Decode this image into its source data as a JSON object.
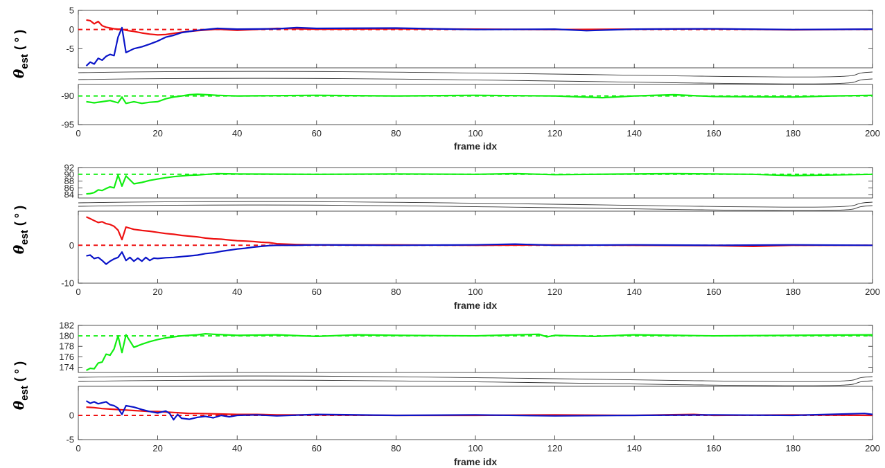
{
  "figure": {
    "colors": {
      "red": "#ee1111",
      "blue": "#0a14c8",
      "green": "#11ee11",
      "axis": "#262626"
    }
  },
  "chart_data": [
    {
      "type": "line",
      "title": "",
      "xlabel": "frame idx",
      "ylabel": {
        "symbol": "θ",
        "subscript": "est",
        "unit": "( ° )"
      },
      "xlim": [
        0,
        200
      ],
      "x_ticks": [
        "0",
        "20",
        "40",
        "60",
        "80",
        "100",
        "120",
        "140",
        "160",
        "180",
        "200"
      ],
      "broken_axis": true,
      "upper": {
        "ylim": [
          -10,
          5
        ],
        "y_ticks": [
          "5",
          "0",
          "-5"
        ]
      },
      "lower": {
        "ylim": [
          -95,
          -88
        ],
        "y_ticks": [
          "-90",
          "-95"
        ]
      },
      "series": [
        {
          "color": "red",
          "panel": "upper",
          "reference": 0,
          "x": [
            2,
            3,
            4,
            5,
            6,
            7,
            8,
            9,
            10,
            11,
            12,
            14,
            16,
            18,
            20,
            22,
            24,
            26,
            28,
            30,
            35,
            40,
            50,
            60,
            80,
            100,
            120,
            140,
            160,
            180,
            200
          ],
          "y": [
            2.5,
            2.3,
            1.5,
            2.1,
            1.0,
            0.6,
            0.4,
            0.2,
            0.1,
            0.1,
            -0.2,
            -0.5,
            -0.9,
            -1.2,
            -1.4,
            -1.3,
            -1.0,
            -0.7,
            -0.5,
            -0.3,
            0.1,
            -0.2,
            0.3,
            0.1,
            0.2,
            0.1,
            0.0,
            0.1,
            0.2,
            -0.1,
            0.1
          ]
        },
        {
          "color": "blue",
          "panel": "upper",
          "reference": 0,
          "x": [
            2,
            3,
            4,
            5,
            6,
            7,
            8,
            9,
            10,
            11,
            12,
            14,
            16,
            18,
            20,
            22,
            24,
            26,
            28,
            30,
            35,
            40,
            50,
            55,
            60,
            80,
            100,
            120,
            128,
            140,
            160,
            180,
            200
          ],
          "y": [
            -9.5,
            -8.5,
            -9.0,
            -7.5,
            -8.0,
            -7.0,
            -6.5,
            -6.8,
            -2.0,
            0.5,
            -6.0,
            -5.0,
            -4.5,
            -3.8,
            -3.0,
            -2.0,
            -1.5,
            -0.8,
            -0.5,
            -0.2,
            0.3,
            0.1,
            0.2,
            0.5,
            0.3,
            0.4,
            0.0,
            0.1,
            -0.3,
            0.1,
            0.2,
            0.0,
            0.1
          ]
        },
        {
          "color": "green",
          "panel": "lower",
          "reference": -90,
          "x": [
            2,
            4,
            6,
            8,
            10,
            11,
            12,
            14,
            16,
            18,
            20,
            22,
            24,
            26,
            28,
            30,
            35,
            40,
            60,
            80,
            100,
            120,
            132,
            140,
            150,
            160,
            180,
            190,
            200
          ],
          "y": [
            -91.0,
            -91.2,
            -91.0,
            -90.8,
            -91.2,
            -90.2,
            -91.3,
            -91.0,
            -91.3,
            -91.1,
            -91.0,
            -90.5,
            -90.2,
            -90.0,
            -89.8,
            -89.7,
            -89.9,
            -90.0,
            -89.9,
            -90.0,
            -89.9,
            -90.0,
            -90.3,
            -90.0,
            -89.8,
            -90.1,
            -90.2,
            -90.0,
            -89.9
          ]
        }
      ]
    },
    {
      "type": "line",
      "title": "",
      "xlabel": "frame idx",
      "ylabel": {
        "symbol": "θ",
        "subscript": "est",
        "unit": "( ° )"
      },
      "xlim": [
        0,
        200
      ],
      "x_ticks": [
        "0",
        "20",
        "40",
        "60",
        "80",
        "100",
        "120",
        "140",
        "160",
        "180",
        "200"
      ],
      "broken_axis": true,
      "upper": {
        "ylim": [
          83,
          92
        ],
        "y_ticks": [
          "92",
          "90",
          "88",
          "86",
          "84"
        ]
      },
      "lower": {
        "ylim": [
          -10,
          9
        ],
        "y_ticks": [
          "0",
          "-10"
        ]
      },
      "series": [
        {
          "color": "green",
          "panel": "upper",
          "reference": 90,
          "x": [
            2,
            3,
            4,
            5,
            6,
            7,
            8,
            9,
            10,
            11,
            12,
            14,
            16,
            18,
            20,
            22,
            24,
            26,
            28,
            30,
            35,
            40,
            60,
            80,
            100,
            110,
            120,
            150,
            170,
            180,
            185,
            200
          ],
          "y": [
            84.2,
            84.3,
            84.6,
            85.4,
            85.2,
            85.8,
            86.3,
            86.0,
            89.8,
            86.5,
            89.5,
            87.2,
            87.6,
            88.2,
            88.6,
            89.0,
            89.3,
            89.5,
            89.7,
            89.8,
            90.2,
            90.1,
            90.0,
            90.1,
            90.0,
            90.2,
            89.9,
            90.2,
            90.0,
            89.6,
            89.7,
            90.0
          ]
        },
        {
          "color": "red",
          "panel": "lower",
          "reference": 0,
          "x": [
            2,
            3,
            4,
            5,
            6,
            7,
            8,
            9,
            10,
            11,
            12,
            14,
            16,
            18,
            20,
            22,
            24,
            26,
            28,
            30,
            32,
            34,
            36,
            38,
            40,
            42,
            44,
            46,
            48,
            50,
            55,
            60,
            80,
            100,
            120,
            140,
            160,
            170,
            180,
            200
          ],
          "y": [
            7.5,
            7.0,
            6.5,
            6.0,
            6.2,
            5.7,
            5.5,
            5.0,
            4.0,
            1.5,
            4.8,
            4.2,
            3.9,
            3.7,
            3.4,
            3.1,
            2.9,
            2.6,
            2.4,
            2.2,
            1.9,
            1.7,
            1.6,
            1.4,
            1.2,
            1.1,
            1.0,
            0.8,
            0.7,
            0.4,
            0.2,
            0.1,
            0.1,
            0.0,
            0.1,
            0.0,
            -0.1,
            -0.3,
            0.0,
            0.0
          ]
        },
        {
          "color": "blue",
          "panel": "lower",
          "reference": 0,
          "x": [
            2,
            3,
            4,
            5,
            6,
            7,
            8,
            9,
            10,
            11,
            12,
            13,
            14,
            15,
            16,
            17,
            18,
            19,
            20,
            22,
            24,
            26,
            28,
            30,
            32,
            34,
            36,
            38,
            40,
            42,
            44,
            46,
            48,
            50,
            55,
            60,
            80,
            100,
            110,
            120,
            140,
            160,
            180,
            200
          ],
          "y": [
            -2.8,
            -2.6,
            -3.5,
            -3.2,
            -4.0,
            -5.0,
            -4.2,
            -3.6,
            -3.2,
            -1.8,
            -4.0,
            -3.2,
            -4.2,
            -3.4,
            -4.2,
            -3.2,
            -4.0,
            -3.4,
            -3.5,
            -3.3,
            -3.2,
            -3.0,
            -2.8,
            -2.6,
            -2.2,
            -2.0,
            -1.6,
            -1.3,
            -1.0,
            -0.8,
            -0.5,
            -0.3,
            -0.1,
            0.0,
            0.0,
            0.1,
            0.0,
            0.1,
            0.3,
            0.0,
            0.1,
            0.0,
            0.1,
            0.0
          ]
        }
      ]
    },
    {
      "type": "line",
      "title": "",
      "xlabel": "frame idx",
      "ylabel": {
        "symbol": "θ",
        "subscript": "est",
        "unit": "( ° )"
      },
      "xlim": [
        0,
        200
      ],
      "x_ticks": [
        "0",
        "20",
        "40",
        "60",
        "80",
        "100",
        "120",
        "140",
        "160",
        "180",
        "200"
      ],
      "broken_axis": true,
      "upper": {
        "ylim": [
          173,
          182
        ],
        "y_ticks": [
          "182",
          "180",
          "178",
          "176",
          "174"
        ]
      },
      "lower": {
        "ylim": [
          -5,
          6
        ],
        "y_ticks": [
          "0",
          "-5"
        ]
      },
      "series": [
        {
          "color": "green",
          "panel": "upper",
          "reference": 180,
          "x": [
            2,
            3,
            4,
            5,
            6,
            7,
            8,
            9,
            10,
            11,
            12,
            14,
            16,
            18,
            20,
            22,
            24,
            26,
            28,
            30,
            32,
            34,
            40,
            50,
            60,
            70,
            80,
            100,
            116,
            118,
            120,
            130,
            140,
            150,
            160,
            180,
            200
          ],
          "y": [
            173.4,
            173.8,
            173.7,
            174.8,
            175.0,
            176.5,
            176.3,
            177.5,
            180.0,
            176.8,
            180.2,
            177.8,
            178.4,
            178.9,
            179.3,
            179.6,
            179.8,
            180.0,
            180.1,
            180.2,
            180.4,
            180.3,
            180.1,
            180.2,
            179.9,
            180.2,
            180.1,
            180.0,
            180.3,
            179.8,
            180.1,
            179.9,
            180.2,
            180.1,
            180.0,
            180.1,
            180.2
          ]
        },
        {
          "color": "red",
          "panel": "lower",
          "reference": 0,
          "x": [
            2,
            4,
            6,
            8,
            10,
            12,
            14,
            16,
            18,
            20,
            22,
            24,
            26,
            28,
            30,
            35,
            40,
            45,
            50,
            60,
            80,
            100,
            120,
            140,
            155,
            160,
            180,
            200
          ],
          "y": [
            1.7,
            1.6,
            1.4,
            1.3,
            1.2,
            1.1,
            1.0,
            0.9,
            0.8,
            0.8,
            0.7,
            0.6,
            0.5,
            0.4,
            0.4,
            0.3,
            0.2,
            0.2,
            0.1,
            0.1,
            0.0,
            0.0,
            0.1,
            0.0,
            0.2,
            0.0,
            0.1,
            0.0
          ]
        },
        {
          "color": "blue",
          "panel": "lower",
          "reference": 0,
          "x": [
            2,
            3,
            4,
            5,
            6,
            7,
            8,
            9,
            10,
            11,
            12,
            14,
            16,
            18,
            20,
            22,
            23,
            24,
            25,
            26,
            28,
            30,
            32,
            34,
            36,
            38,
            40,
            45,
            50,
            60,
            80,
            100,
            120,
            140,
            160,
            180,
            198,
            200
          ],
          "y": [
            3.0,
            2.5,
            2.8,
            2.4,
            2.6,
            2.8,
            2.2,
            2.0,
            1.5,
            0.2,
            2.0,
            1.7,
            1.2,
            0.8,
            0.5,
            0.9,
            0.4,
            -0.9,
            0.2,
            -0.6,
            -0.8,
            -0.4,
            -0.2,
            -0.5,
            0.0,
            -0.3,
            0.0,
            0.1,
            -0.1,
            0.2,
            0.0,
            0.1,
            -0.1,
            0.0,
            0.1,
            0.0,
            0.4,
            0.2
          ]
        }
      ]
    }
  ]
}
